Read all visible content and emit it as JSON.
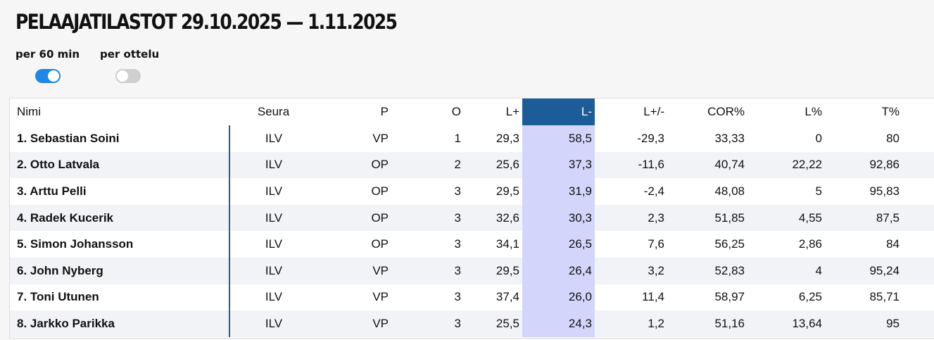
{
  "title": "PELAAJATILASTOT 29.10.2025 — 1.11.2025",
  "toggles": [
    {
      "label": "per 60 min",
      "state": "on"
    },
    {
      "label": "per ottelu",
      "state": "off"
    }
  ],
  "colors": {
    "accent": "#1f87e5",
    "header_sorted": "#1c5d99",
    "sorted_column": "#d4d5fb",
    "divider": "#1e5f99"
  },
  "table": {
    "headers": [
      "Nimi",
      "Seura",
      "P",
      "O",
      "L+",
      "L-",
      "L+/-",
      "COR%",
      "L%",
      "T%"
    ],
    "sorted_column": "L-",
    "rows": [
      [
        "1.  Sebastian Soini",
        "ILV",
        "VP",
        "1",
        "29,3",
        "58,5",
        "-29,3",
        "33,33",
        "0",
        "80"
      ],
      [
        "2.  Otto Latvala",
        "ILV",
        "OP",
        "2",
        "25,6",
        "37,3",
        "-11,6",
        "40,74",
        "22,22",
        "92,86"
      ],
      [
        "3.  Arttu Pelli",
        "ILV",
        "OP",
        "3",
        "29,5",
        "31,9",
        "-2,4",
        "48,08",
        "5",
        "95,83"
      ],
      [
        "4.  Radek Kucerik",
        "ILV",
        "OP",
        "3",
        "32,6",
        "30,3",
        "2,3",
        "51,85",
        "4,55",
        "87,5"
      ],
      [
        "5.  Simon Johansson",
        "ILV",
        "OP",
        "3",
        "34,1",
        "26,5",
        "7,6",
        "56,25",
        "2,86",
        "84"
      ],
      [
        "6.  John Nyberg",
        "ILV",
        "VP",
        "3",
        "29,5",
        "26,4",
        "3,2",
        "52,83",
        "4",
        "95,24"
      ],
      [
        "7.  Toni Utunen",
        "ILV",
        "VP",
        "3",
        "37,4",
        "26,0",
        "11,4",
        "58,97",
        "6,25",
        "85,71"
      ],
      [
        "8.  Jarkko Parikka",
        "ILV",
        "VP",
        "3",
        "25,5",
        "24,3",
        "1,2",
        "51,16",
        "13,64",
        "95"
      ]
    ]
  }
}
